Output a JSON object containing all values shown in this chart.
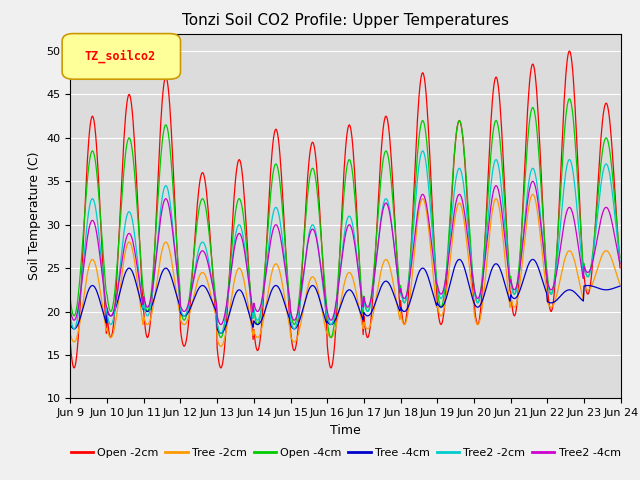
{
  "title": "Tonzi Soil CO2 Profile: Upper Temperatures",
  "xlabel": "Time",
  "ylabel": "Soil Temperature (C)",
  "ylim": [
    10,
    52
  ],
  "yticks": [
    10,
    15,
    20,
    25,
    30,
    35,
    40,
    45,
    50
  ],
  "plot_bg_color": "#dcdcdc",
  "fig_bg_color": "#f0f0f0",
  "series_colors": {
    "Open -2cm": "#ff0000",
    "Tree -2cm": "#ff9900",
    "Open -4cm": "#00cc00",
    "Tree -4cm": "#0000cc",
    "Tree2 -2cm": "#00cccc",
    "Tree2 -4cm": "#cc00cc"
  },
  "legend_label": "TZ_soilco2",
  "legend_box_color": "#ffff99",
  "legend_box_edge": "#cc9900",
  "n_days": 15,
  "start_day": 9,
  "pts_per_day": 48,
  "open_2cm_peaks": [
    42.5,
    45.0,
    47.0,
    36.0,
    37.5,
    41.0,
    39.5,
    41.5,
    42.5,
    47.5,
    42.0,
    47.0,
    48.5,
    50.0,
    44.0
  ],
  "open_2cm_troughs": [
    13.5,
    17.0,
    17.0,
    16.0,
    13.5,
    15.5,
    15.5,
    13.5,
    17.0,
    18.5,
    18.5,
    18.5,
    19.5,
    20.0,
    22.0
  ],
  "tree_2cm_peaks": [
    26.0,
    28.0,
    28.0,
    24.5,
    25.0,
    25.5,
    24.0,
    24.5,
    26.0,
    33.0,
    32.5,
    33.0,
    33.5,
    27.0,
    27.0
  ],
  "tree_2cm_troughs": [
    16.5,
    17.0,
    18.5,
    18.5,
    16.0,
    17.0,
    16.5,
    17.0,
    18.0,
    18.5,
    19.5,
    18.5,
    20.5,
    20.5,
    22.5
  ],
  "open_4cm_peaks": [
    38.5,
    40.0,
    41.5,
    33.0,
    33.0,
    37.0,
    36.5,
    37.5,
    38.5,
    42.0,
    42.0,
    42.0,
    43.5,
    44.5,
    40.0
  ],
  "open_4cm_troughs": [
    19.5,
    20.0,
    20.0,
    19.0,
    17.0,
    18.5,
    18.5,
    17.0,
    20.0,
    21.0,
    20.5,
    21.0,
    22.0,
    22.0,
    24.0
  ],
  "tree_4cm_peaks": [
    23.0,
    25.0,
    25.0,
    23.0,
    22.5,
    23.0,
    23.0,
    22.5,
    23.5,
    25.0,
    26.0,
    25.5,
    26.0,
    22.5,
    22.5
  ],
  "tree_4cm_troughs": [
    18.0,
    19.5,
    20.0,
    19.5,
    17.5,
    18.5,
    18.0,
    18.5,
    19.5,
    20.0,
    20.5,
    20.5,
    21.5,
    21.0,
    23.0
  ],
  "tree2_2cm_peaks": [
    33.0,
    31.5,
    34.5,
    28.0,
    30.0,
    32.0,
    30.0,
    31.0,
    33.0,
    38.5,
    36.5,
    37.5,
    36.5,
    37.5,
    37.0
  ],
  "tree2_2cm_troughs": [
    18.0,
    18.5,
    19.5,
    19.5,
    17.5,
    19.0,
    18.0,
    18.5,
    20.0,
    21.0,
    21.5,
    21.0,
    22.0,
    22.0,
    24.0
  ],
  "tree2_4cm_peaks": [
    30.5,
    29.0,
    33.0,
    27.0,
    29.0,
    30.0,
    29.5,
    30.0,
    32.5,
    33.5,
    33.5,
    34.5,
    35.0,
    32.0,
    32.0
  ],
  "tree2_4cm_troughs": [
    19.0,
    19.5,
    20.5,
    20.0,
    18.5,
    20.0,
    19.0,
    19.0,
    20.5,
    21.5,
    22.0,
    21.5,
    22.5,
    22.5,
    24.5
  ]
}
